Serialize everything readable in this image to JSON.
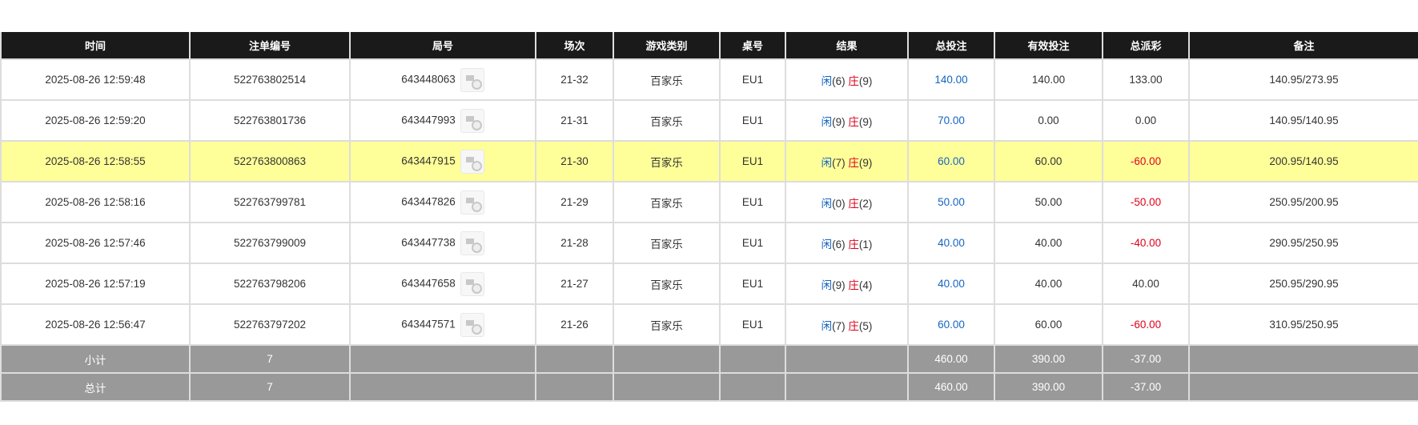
{
  "headers": [
    "时间",
    "注单编号",
    "局号",
    "场次",
    "游戏类别",
    "桌号",
    "结果",
    "总投注",
    "有效投注",
    "总派彩",
    "备注"
  ],
  "rows": [
    {
      "time": "2025-08-26 12:59:48",
      "bet_id": "522763802514",
      "round": "643448063",
      "session": "21-32",
      "game": "百家乐",
      "table": "EU1",
      "p_label": "闲",
      "p": "(6)",
      "b_label": "庄",
      "b": "(9)",
      "total": "140.00",
      "valid": "140.00",
      "payout": "133.00",
      "payout_neg": false,
      "note": "140.95/273.95",
      "highlight": false
    },
    {
      "time": "2025-08-26 12:59:20",
      "bet_id": "522763801736",
      "round": "643447993",
      "session": "21-31",
      "game": "百家乐",
      "table": "EU1",
      "p_label": "闲",
      "p": "(9)",
      "b_label": "庄",
      "b": "(9)",
      "total": "70.00",
      "valid": "0.00",
      "payout": "0.00",
      "payout_neg": false,
      "note": "140.95/140.95",
      "highlight": false
    },
    {
      "time": "2025-08-26 12:58:55",
      "bet_id": "522763800863",
      "round": "643447915",
      "session": "21-30",
      "game": "百家乐",
      "table": "EU1",
      "p_label": "闲",
      "p": "(7)",
      "b_label": "庄",
      "b": "(9)",
      "total": "60.00",
      "valid": "60.00",
      "payout": "-60.00",
      "payout_neg": true,
      "note": "200.95/140.95",
      "highlight": true
    },
    {
      "time": "2025-08-26 12:58:16",
      "bet_id": "522763799781",
      "round": "643447826",
      "session": "21-29",
      "game": "百家乐",
      "table": "EU1",
      "p_label": "闲",
      "p": "(0)",
      "b_label": "庄",
      "b": "(2)",
      "total": "50.00",
      "valid": "50.00",
      "payout": "-50.00",
      "payout_neg": true,
      "note": "250.95/200.95",
      "highlight": false
    },
    {
      "time": "2025-08-26 12:57:46",
      "bet_id": "522763799009",
      "round": "643447738",
      "session": "21-28",
      "game": "百家乐",
      "table": "EU1",
      "p_label": "闲",
      "p": "(6)",
      "b_label": "庄",
      "b": "(1)",
      "total": "40.00",
      "valid": "40.00",
      "payout": "-40.00",
      "payout_neg": true,
      "note": "290.95/250.95",
      "highlight": false
    },
    {
      "time": "2025-08-26 12:57:19",
      "bet_id": "522763798206",
      "round": "643447658",
      "session": "21-27",
      "game": "百家乐",
      "table": "EU1",
      "p_label": "闲",
      "p": "(9)",
      "b_label": "庄",
      "b": "(4)",
      "total": "40.00",
      "valid": "40.00",
      "payout": "40.00",
      "payout_neg": false,
      "note": "250.95/290.95",
      "highlight": false
    },
    {
      "time": "2025-08-26 12:56:47",
      "bet_id": "522763797202",
      "round": "643447571",
      "session": "21-26",
      "game": "百家乐",
      "table": "EU1",
      "p_label": "闲",
      "p": "(7)",
      "b_label": "庄",
      "b": "(5)",
      "total": "60.00",
      "valid": "60.00",
      "payout": "-60.00",
      "payout_neg": true,
      "note": "310.95/250.95",
      "highlight": false
    }
  ],
  "summary": [
    {
      "label": "小计",
      "count": "7",
      "total": "460.00",
      "valid": "390.00",
      "payout": "-37.00"
    },
    {
      "label": "总计",
      "count": "7",
      "total": "460.00",
      "valid": "390.00",
      "payout": "-37.00"
    }
  ],
  "colors": {
    "header_bg": "#1a1a1a",
    "highlight": "#ffff99",
    "summary_bg": "#999999",
    "blue": "#1565c0",
    "red": "#e0001a"
  },
  "icons": {
    "round_video": "video-replay-icon"
  }
}
